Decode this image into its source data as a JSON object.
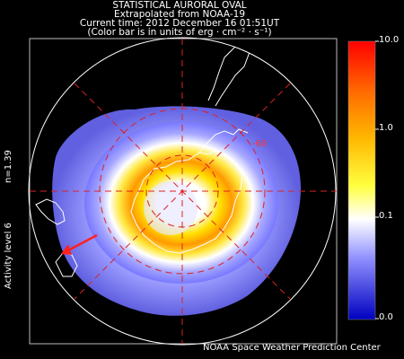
{
  "header": {
    "title": "STATISTICAL AURORAL OVAL",
    "subtitle": "Extrapolated from NOAA-19",
    "time_line": "Current time: 2012 December 16 01:51UT",
    "colorbar_note": "(Color bar is in units of erg · cm⁻² · s⁻¹)"
  },
  "sidebar": {
    "n_label": "n=1.39",
    "activity_label": "Activity level 6"
  },
  "colorbar": {
    "ticks": [
      "10.0",
      "1.0",
      "0.1",
      "0.0"
    ],
    "colors": [
      "#ff0000",
      "#ff7f00",
      "#ffff00",
      "#ffffff",
      "#7b7bff",
      "#0000c0"
    ]
  },
  "map": {
    "latitude_label": "-60"
  },
  "footer": {
    "credit": "NOAA Space Weather Prediction Center"
  }
}
